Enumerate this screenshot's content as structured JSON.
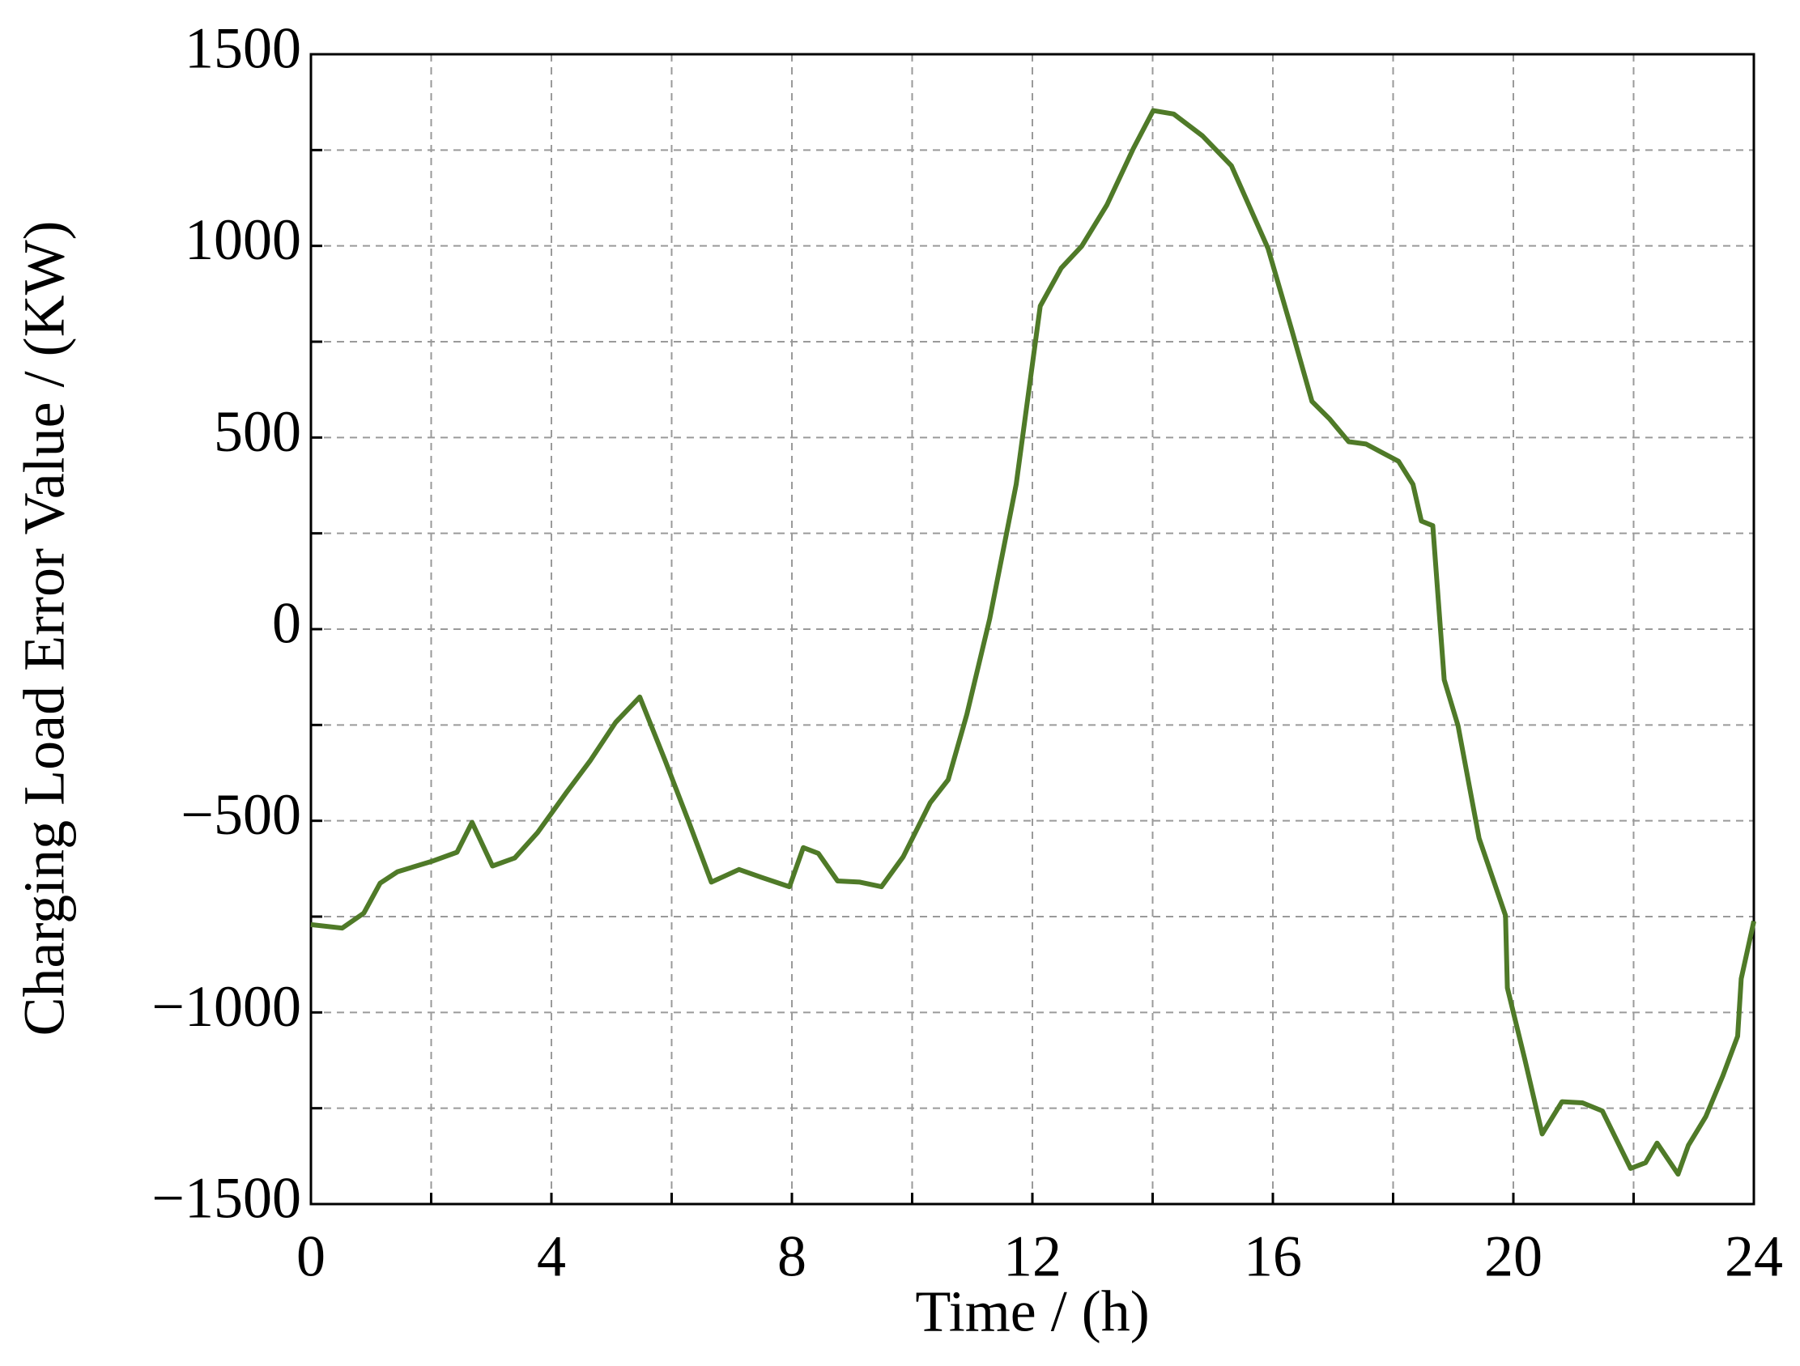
{
  "chart_data": {
    "type": "line",
    "x_label": "Time / (h)",
    "y_label": "Charging Load Error Value / (KW)",
    "x": [
      0,
      0.52,
      0.88,
      1.15,
      1.44,
      2.01,
      2.43,
      2.68,
      3.02,
      3.39,
      3.77,
      4.25,
      4.65,
      5.07,
      5.47,
      5.89,
      6.28,
      6.66,
      7.12,
      7.5,
      7.96,
      8.19,
      8.44,
      8.76,
      9.13,
      9.49,
      9.85,
      10.3,
      10.6,
      10.91,
      11.29,
      11.73,
      12.13,
      12.48,
      12.82,
      13.24,
      13.68,
      14.01,
      14.35,
      14.83,
      15.31,
      15.92,
      16.31,
      16.65,
      16.94,
      17.26,
      17.55,
      17.8,
      18.09,
      18.33,
      18.47,
      18.66,
      18.85,
      19.08,
      19.43,
      19.87,
      19.9,
      20.19,
      20.48,
      20.81,
      21.15,
      21.48,
      21.95,
      22.2,
      22.39,
      22.74,
      22.91,
      23.2,
      23.48,
      23.73,
      23.79,
      24
    ],
    "series": [
      {
        "color": "#4f7a28",
        "values": [
          -771,
          -780,
          -741,
          -663,
          -633,
          -606,
          -582,
          -504,
          -618,
          -597,
          -531,
          -426,
          -342,
          -243,
          -177,
          -342,
          -501,
          -660,
          -627,
          -648,
          -672,
          -570,
          -585,
          -657,
          -660,
          -672,
          -594,
          -453,
          -393,
          -222,
          27,
          378,
          843,
          942,
          999,
          1107,
          1254,
          1353,
          1344,
          1287,
          1209,
          993,
          783,
          594,
          549,
          489,
          483,
          462,
          438,
          378,
          282,
          270,
          -132,
          -252,
          -546,
          -747,
          -936,
          -1122,
          -1317,
          -1233,
          -1236,
          -1257,
          -1407,
          -1392,
          -1341,
          -1422,
          -1347,
          -1272,
          -1167,
          -1062,
          -912,
          -762
        ]
      }
    ],
    "xlim": [
      0,
      24
    ],
    "xticks": [
      0,
      4,
      8,
      12,
      16,
      20,
      24
    ],
    "x_minor_ticks": [
      2,
      6,
      10,
      14,
      18,
      22
    ],
    "ylim": [
      -1500,
      1500
    ],
    "yticks": [
      {
        "value": -1500,
        "label": "−1500"
      },
      {
        "value": -1000,
        "label": "−1000"
      },
      {
        "value": -500,
        "label": "−500"
      },
      0,
      500,
      1000,
      1500
    ],
    "y_minor_ticks": [
      -1250,
      -750,
      -250,
      250,
      750,
      1250
    ],
    "grid": true
  }
}
